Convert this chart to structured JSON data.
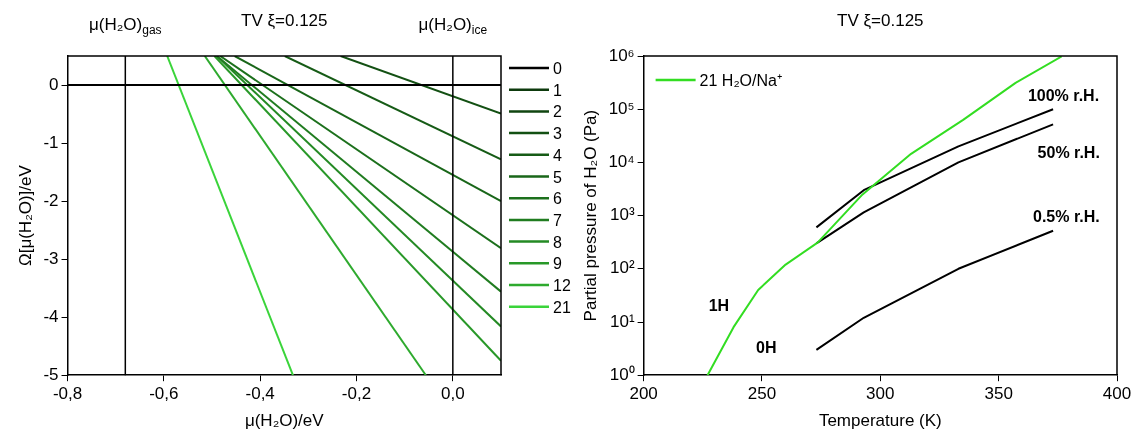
{
  "chart_data": [
    {
      "type": "line",
      "title": "TV ξ=0.125",
      "xlabel": "μ(H₂O)/eV",
      "ylabel": "Ω[μ(H₂O)]/eV",
      "xlim": [
        -0.8,
        0.1
      ],
      "ylim": [
        -5,
        0.5
      ],
      "xticks": [
        {
          "value": -0.8,
          "label": "-0,8"
        },
        {
          "value": -0.6,
          "label": "-0,6"
        },
        {
          "value": -0.4,
          "label": "-0,4"
        },
        {
          "value": -0.2,
          "label": "-0,2"
        },
        {
          "value": 0,
          "label": "0,0"
        }
      ],
      "yticks": [
        -5,
        -4,
        -3,
        -2,
        -1,
        0
      ],
      "legend": "right",
      "line_style": "solid",
      "ref_lines": [
        {
          "axis": "x",
          "value": -0.68,
          "label": "μ(H₂O)$_{gas}$",
          "color": "#000000"
        },
        {
          "axis": "x",
          "value": 0,
          "label": "μ(H₂O)$_{ice}$",
          "color": "#000000"
        }
      ],
      "series": [
        {
          "name": "0",
          "color": "#000000",
          "x": [
            -0.8,
            0.1
          ],
          "values": [
            0,
            0
          ]
        },
        {
          "name": "1",
          "color": "#0d3a0d"
        },
        {
          "name": "2",
          "color": "#104510"
        },
        {
          "name": "3",
          "color": "#135013",
          "x": [
            -0.233,
            0.1
          ],
          "values": [
            0.5,
            -0.49
          ]
        },
        {
          "name": "4",
          "color": "#165b16",
          "x": [
            -0.349,
            0.1
          ],
          "values": [
            0.5,
            -1.28
          ]
        },
        {
          "name": "5",
          "color": "#196619",
          "x": [
            -0.453,
            0.1
          ],
          "values": [
            0.5,
            -2.0
          ]
        },
        {
          "name": "6",
          "color": "#1c701c",
          "x": [
            -0.483,
            0.1
          ],
          "values": [
            0.5,
            -2.81
          ]
        },
        {
          "name": "7",
          "color": "#207c20",
          "x": [
            -0.49,
            0.1
          ],
          "values": [
            0.5,
            -3.56
          ]
        },
        {
          "name": "8",
          "color": "#248a24",
          "x": [
            -0.49,
            0.1
          ],
          "values": [
            0.5,
            -4.16
          ]
        },
        {
          "name": "9",
          "color": "#289828",
          "x": [
            -0.495,
            0.1
          ],
          "values": [
            0.5,
            -4.75
          ]
        },
        {
          "name": "12",
          "color": "#2eaa2e",
          "x": [
            -0.515,
            -0.056
          ],
          "values": [
            0.5,
            -5
          ]
        },
        {
          "name": "21",
          "color": "#3ad43a",
          "x": [
            -0.593,
            -0.332
          ],
          "values": [
            0.5,
            -5
          ]
        }
      ]
    },
    {
      "type": "line",
      "title": "TV ξ=0.125",
      "xlabel": "Temperature (K)",
      "ylabel": "Partial pressure of H₂O (Pa)",
      "xlim": [
        200,
        400
      ],
      "ylim": [
        1,
        1000000
      ],
      "log": "y",
      "xticks": [
        200,
        250,
        300,
        350,
        400
      ],
      "yticks": [
        {
          "value": 1,
          "label": "10⁰"
        },
        {
          "value": 10,
          "label": "10¹"
        },
        {
          "value": 100,
          "label": "10²"
        },
        {
          "value": 1000,
          "label": "10³"
        },
        {
          "value": 10000,
          "label": "10⁴"
        },
        {
          "value": 100000,
          "label": "10⁵"
        },
        {
          "value": 1000000,
          "label": "10⁶"
        }
      ],
      "legend": "top left",
      "line_style": "solid",
      "annotations": [
        "100% r.H.",
        "50% r.H.",
        "0.5% r.H.",
        "1H",
        "0H"
      ],
      "series": [
        {
          "name": "21 H₂O/Na⁺",
          "color": "#33dd22",
          "x": [
            227,
            238,
            248.4,
            260,
            273.5,
            292.5,
            313,
            335,
            357,
            376.6
          ],
          "values": [
            1,
            8,
            40,
            120,
            310,
            2500,
            14500,
            63000,
            310000,
            980000
          ]
        },
        {
          "color": "#000000",
          "x": [
            273,
            293,
            333,
            373
          ],
          "values": [
            600,
            3000,
            20000,
            100000
          ]
        },
        {
          "color": "#000000",
          "x": [
            273,
            293,
            333,
            373
          ],
          "values": [
            300,
            1150,
            10000,
            52000
          ]
        },
        {
          "color": "#000000",
          "x": [
            273,
            293,
            333,
            373
          ],
          "values": [
            3,
            12,
            100,
            520
          ]
        }
      ]
    }
  ]
}
